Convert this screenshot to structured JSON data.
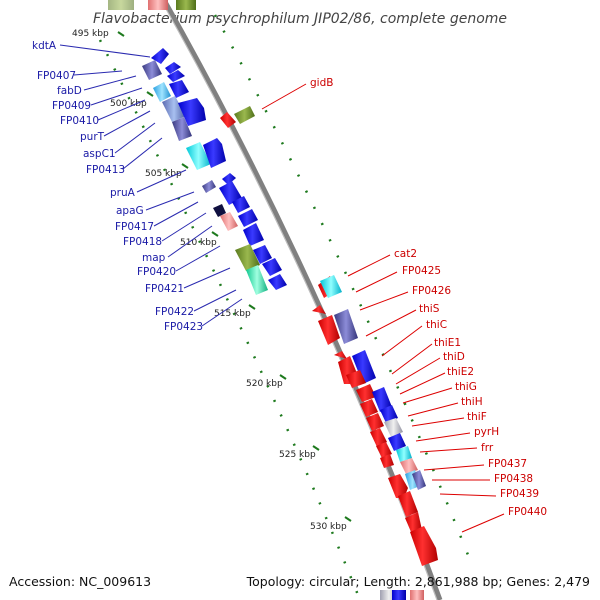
{
  "title": "Flavobacterium psychrophilum JIP02/86, complete genome",
  "footer": {
    "accession": "Accession: NC_009613",
    "summary": "Topology: circular; Length: 2,861,988 bp; Genes: 2,479"
  },
  "colors": {
    "backbone": "#808080",
    "tick": "#1e7a1e",
    "left_label": "#1a1aa6",
    "right_label": "#cc0000",
    "left_leader": "#2a2ab0",
    "right_leader": "#dd0000"
  },
  "ruler_ticks": [
    {
      "label": "495 kbp"
    },
    {
      "label": "500 kbp"
    },
    {
      "label": "505 kbp"
    },
    {
      "label": "510 kbp"
    },
    {
      "label": "515 kbp"
    },
    {
      "label": "520 kbp"
    },
    {
      "label": "525 kbp"
    },
    {
      "label": "530 kbp"
    }
  ],
  "left_labels": [
    {
      "name": "kdtA"
    },
    {
      "name": "FP0407"
    },
    {
      "name": "fabD"
    },
    {
      "name": "FP0409"
    },
    {
      "name": "FP0410"
    },
    {
      "name": "purT"
    },
    {
      "name": "aspC1"
    },
    {
      "name": "FP0413"
    },
    {
      "name": "pruA"
    },
    {
      "name": "apaG"
    },
    {
      "name": "FP0417"
    },
    {
      "name": "FP0418"
    },
    {
      "name": "map"
    },
    {
      "name": "FP0420"
    },
    {
      "name": "FP0421"
    },
    {
      "name": "FP0422"
    },
    {
      "name": "FP0423"
    }
  ],
  "right_labels": [
    {
      "name": "gidB"
    },
    {
      "name": "cat2"
    },
    {
      "name": "FP0425"
    },
    {
      "name": "FP0426"
    },
    {
      "name": "thiS"
    },
    {
      "name": "thiC"
    },
    {
      "name": "thiE1"
    },
    {
      "name": "thiD"
    },
    {
      "name": "thiE2"
    },
    {
      "name": "thiG"
    },
    {
      "name": "thiH"
    },
    {
      "name": "thiF"
    },
    {
      "name": "pyrH"
    },
    {
      "name": "frr"
    },
    {
      "name": "FP0437"
    },
    {
      "name": "FP0438"
    },
    {
      "name": "FP0439"
    },
    {
      "name": "FP0440"
    }
  ]
}
